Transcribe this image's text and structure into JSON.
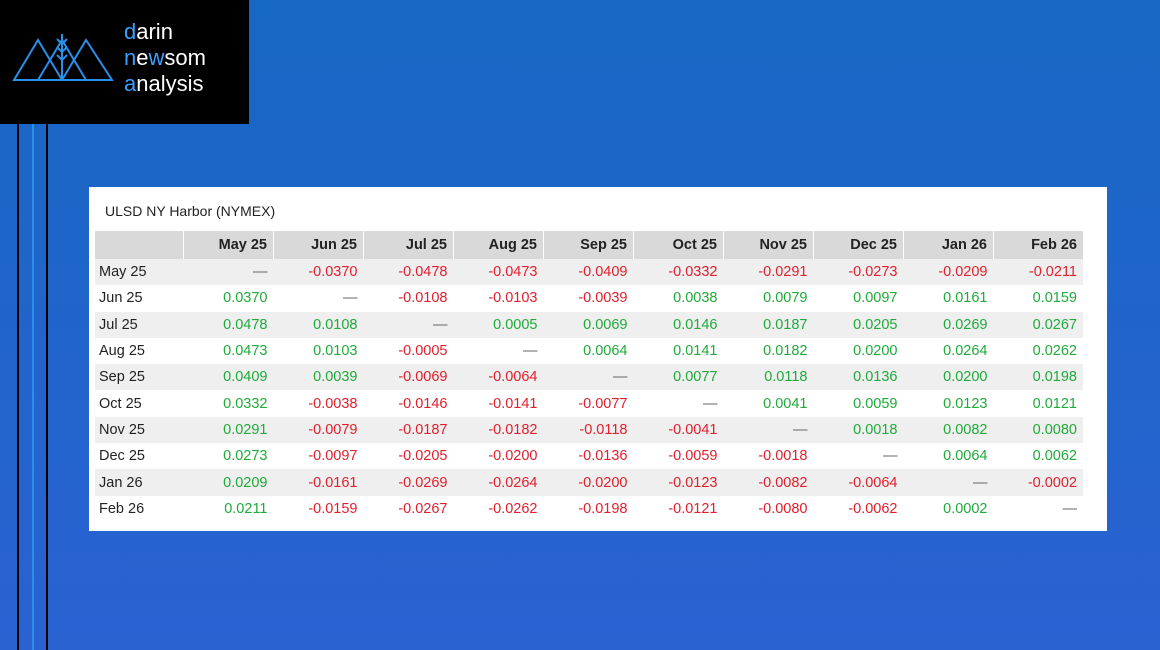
{
  "logo": {
    "lines": [
      [
        "d",
        "arin"
      ],
      [
        "n",
        "e",
        "w",
        "som"
      ],
      [
        "a",
        "nalysis"
      ]
    ]
  },
  "table": {
    "title": "ULSD NY Harbor (NYMEX)",
    "columns": [
      "May 25",
      "Jun 25",
      "Jul 25",
      "Aug 25",
      "Sep 25",
      "Oct 25",
      "Nov 25",
      "Dec 25",
      "Jan 26",
      "Feb 26"
    ],
    "rows": [
      {
        "label": "May 25",
        "cells": [
          "—",
          "-0.0370",
          "-0.0478",
          "-0.0473",
          "-0.0409",
          "-0.0332",
          "-0.0291",
          "-0.0273",
          "-0.0209",
          "-0.0211"
        ]
      },
      {
        "label": "Jun 25",
        "cells": [
          "0.0370",
          "—",
          "-0.0108",
          "-0.0103",
          "-0.0039",
          "0.0038",
          "0.0079",
          "0.0097",
          "0.0161",
          "0.0159"
        ]
      },
      {
        "label": "Jul 25",
        "cells": [
          "0.0478",
          "0.0108",
          "—",
          "0.0005",
          "0.0069",
          "0.0146",
          "0.0187",
          "0.0205",
          "0.0269",
          "0.0267"
        ]
      },
      {
        "label": "Aug 25",
        "cells": [
          "0.0473",
          "0.0103",
          "-0.0005",
          "—",
          "0.0064",
          "0.0141",
          "0.0182",
          "0.0200",
          "0.0264",
          "0.0262"
        ]
      },
      {
        "label": "Sep 25",
        "cells": [
          "0.0409",
          "0.0039",
          "-0.0069",
          "-0.0064",
          "—",
          "0.0077",
          "0.0118",
          "0.0136",
          "0.0200",
          "0.0198"
        ]
      },
      {
        "label": "Oct 25",
        "cells": [
          "0.0332",
          "-0.0038",
          "-0.0146",
          "-0.0141",
          "-0.0077",
          "—",
          "0.0041",
          "0.0059",
          "0.0123",
          "0.0121"
        ]
      },
      {
        "label": "Nov 25",
        "cells": [
          "0.0291",
          "-0.0079",
          "-0.0187",
          "-0.0182",
          "-0.0118",
          "-0.0041",
          "—",
          "0.0018",
          "0.0082",
          "0.0080"
        ]
      },
      {
        "label": "Dec 25",
        "cells": [
          "0.0273",
          "-0.0097",
          "-0.0205",
          "-0.0200",
          "-0.0136",
          "-0.0059",
          "-0.0018",
          "—",
          "0.0064",
          "0.0062"
        ]
      },
      {
        "label": "Jan 26",
        "cells": [
          "0.0209",
          "-0.0161",
          "-0.0269",
          "-0.0264",
          "-0.0200",
          "-0.0123",
          "-0.0082",
          "-0.0064",
          "—",
          "-0.0002"
        ]
      },
      {
        "label": "Feb 26",
        "cells": [
          "0.0211",
          "-0.0159",
          "-0.0267",
          "-0.0262",
          "-0.0198",
          "-0.0121",
          "-0.0080",
          "-0.0062",
          "0.0002",
          "—"
        ]
      }
    ]
  }
}
